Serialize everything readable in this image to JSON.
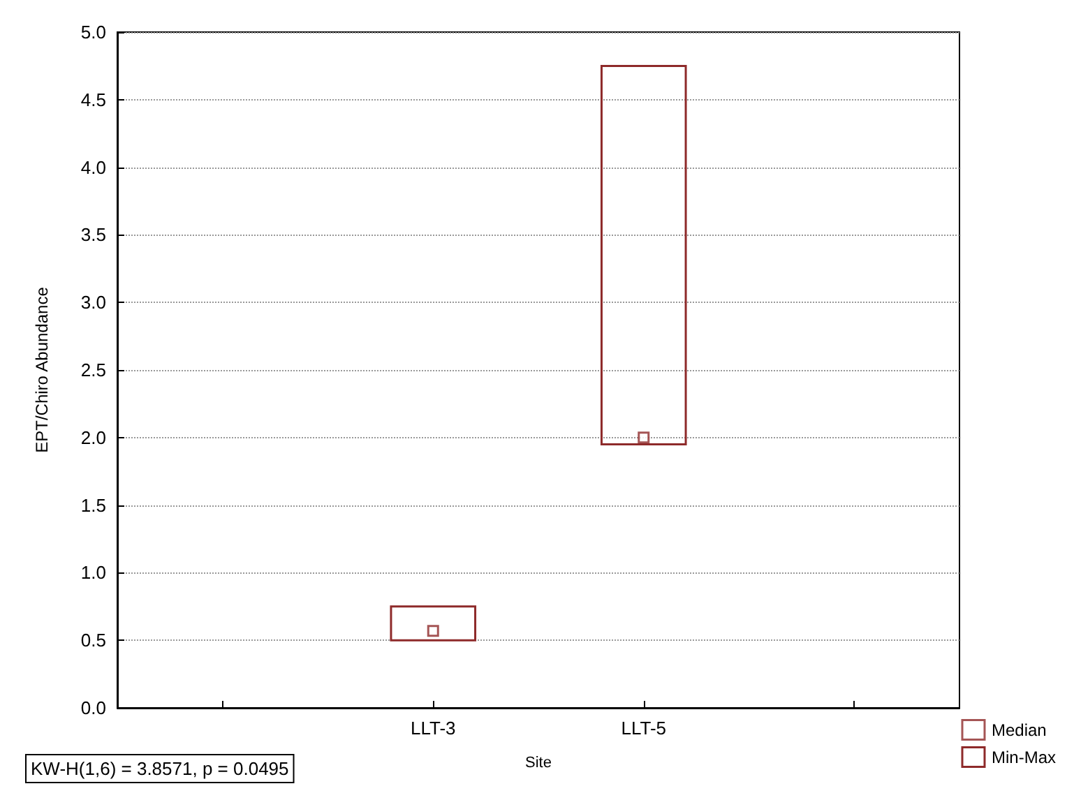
{
  "chart_data": {
    "type": "bar",
    "xlabel": "Site",
    "ylabel": "EPT/Chiro Abundance",
    "categories": [
      null,
      "LLT-3",
      "LLT-5",
      null
    ],
    "series": [
      {
        "name": "Min-Max",
        "color": "#8e2a2a",
        "base": [
          null,
          0.5,
          1.95,
          null
        ],
        "values": [
          null,
          0.25,
          2.8,
          null
        ]
      },
      {
        "type": "scatter",
        "name": "Median",
        "color": "#8e2a2a",
        "marker": "square",
        "values": [
          null,
          0.57,
          2.0,
          null
        ]
      }
    ],
    "ylim": [
      0,
      5
    ],
    "yticks": [
      {
        "value": 0,
        "label": "0.0"
      },
      {
        "value": 0.5,
        "label": "0.5"
      },
      {
        "value": 1,
        "label": "1.0"
      },
      {
        "value": 1.5,
        "label": "1.5"
      },
      {
        "value": 2,
        "label": "2.0"
      },
      {
        "value": 2.5,
        "label": "2.5"
      },
      {
        "value": 3,
        "label": "3.0"
      },
      {
        "value": 3.5,
        "label": "3.5"
      },
      {
        "value": 4,
        "label": "4.0"
      },
      {
        "value": 4.5,
        "label": "4.5"
      },
      {
        "value": 5,
        "label": "5.0"
      }
    ],
    "grid": "y",
    "line_style": "dotted",
    "legend": "bottom right",
    "annotations": [
      "KW-H(1,6) = 3.8571, p = 0.0495"
    ]
  }
}
